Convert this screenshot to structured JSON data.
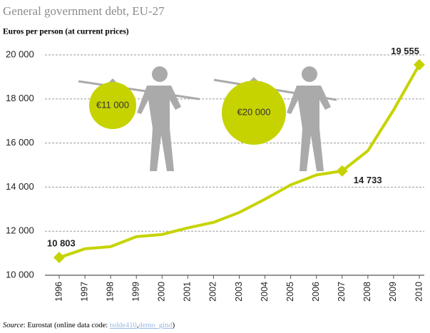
{
  "chart_data": {
    "type": "line",
    "title": "General government debt, EU-27",
    "subtitle": "Euros per person (at current prices)",
    "categories": [
      "1996",
      "1997",
      "1998",
      "1999",
      "2000",
      "2001",
      "2002",
      "2003",
      "2004",
      "2005",
      "2006",
      "2007",
      "2008",
      "2009",
      "2010"
    ],
    "series": [
      {
        "name": "General government debt per person",
        "color": "#c6d300",
        "values": [
          10803,
          11200,
          11300,
          11750,
          11850,
          12150,
          12400,
          12850,
          13450,
          14100,
          14550,
          14733,
          15650,
          17500,
          19555
        ],
        "value_labels": [
          "10 803",
          null,
          null,
          null,
          null,
          null,
          null,
          null,
          null,
          null,
          null,
          "14 733",
          null,
          null,
          "19 555"
        ]
      }
    ],
    "ylim": [
      10000,
      20000
    ],
    "yticks": [
      {
        "value": 10000,
        "label": "10 000"
      },
      {
        "value": 12000,
        "label": "12 000"
      },
      {
        "value": 14000,
        "label": "14 000"
      },
      {
        "value": 16000,
        "label": "16 000"
      },
      {
        "value": 18000,
        "label": "18 000"
      },
      {
        "value": 20000,
        "label": "20 000"
      }
    ],
    "grid": true,
    "annotations": [
      "€11 000",
      "€20 000"
    ],
    "source": {
      "label": "Source",
      "text": ": Eurostat (online data code: ",
      "link1": "tsdde410",
      "sep": ",",
      "link2": "demo_gind",
      "end": ")"
    }
  }
}
